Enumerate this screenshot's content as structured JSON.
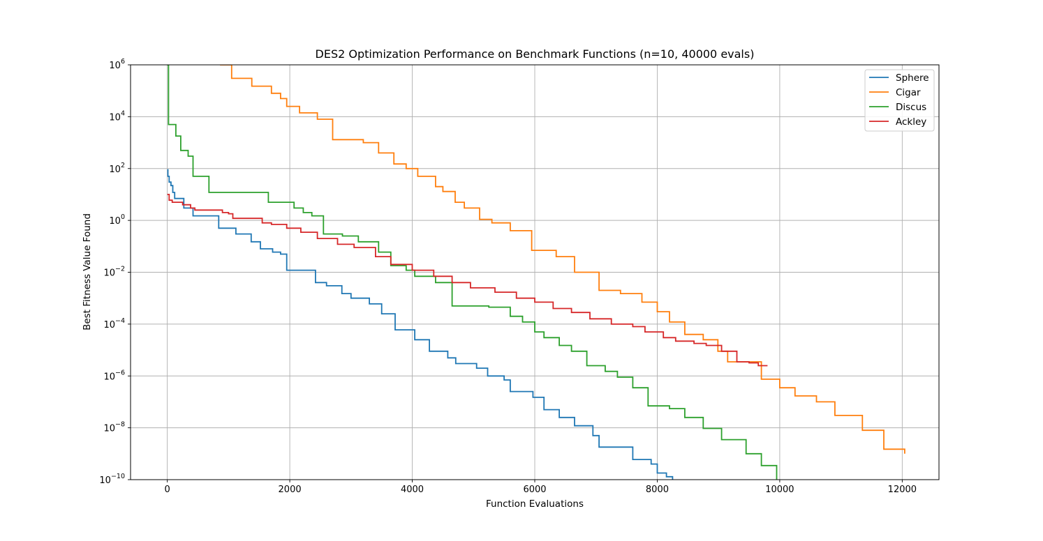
{
  "chart_data": {
    "type": "line",
    "title": "DES2 Optimization Performance on Benchmark Functions (n=10, 40000 evals)",
    "xlabel": "Function Evaluations",
    "ylabel": "Best Fitness Value Found",
    "xlim": [
      -600,
      12600
    ],
    "ylim": [
      1e-10,
      1000000.0
    ],
    "yscale": "log",
    "grid": true,
    "legend_position": "upper right",
    "x_ticks": [
      {
        "value": 0,
        "label": "0"
      },
      {
        "value": 2000,
        "label": "2000"
      },
      {
        "value": 4000,
        "label": "4000"
      },
      {
        "value": 6000,
        "label": "6000"
      },
      {
        "value": 8000,
        "label": "8000"
      },
      {
        "value": 10000,
        "label": "10000"
      },
      {
        "value": 12000,
        "label": "12000"
      }
    ],
    "y_ticks": [
      {
        "exp": -10,
        "base": "10",
        "sup": "−10"
      },
      {
        "exp": -8,
        "base": "10",
        "sup": "−8"
      },
      {
        "exp": -6,
        "base": "10",
        "sup": "−6"
      },
      {
        "exp": -4,
        "base": "10",
        "sup": "−4"
      },
      {
        "exp": -2,
        "base": "10",
        "sup": "−2"
      },
      {
        "exp": 0,
        "base": "10",
        "sup": "0"
      },
      {
        "exp": 2,
        "base": "10",
        "sup": "2"
      },
      {
        "exp": 4,
        "base": "10",
        "sup": "4"
      },
      {
        "exp": 6,
        "base": "10",
        "sup": "6"
      }
    ],
    "series": [
      {
        "name": "Sphere",
        "color": "#1f77b4",
        "points": [
          [
            0,
            90
          ],
          [
            10,
            50
          ],
          [
            30,
            30
          ],
          [
            60,
            22
          ],
          [
            90,
            12
          ],
          [
            120,
            7
          ],
          [
            270,
            3
          ],
          [
            420,
            1.5
          ],
          [
            840,
            0.5
          ],
          [
            1120,
            0.3
          ],
          [
            1370,
            0.15
          ],
          [
            1520,
            0.08
          ],
          [
            1720,
            0.06
          ],
          [
            1850,
            0.05
          ],
          [
            1950,
            0.012
          ],
          [
            2420,
            0.004
          ],
          [
            2600,
            0.003
          ],
          [
            2850,
            0.0015
          ],
          [
            3000,
            0.001
          ],
          [
            3300,
            0.0006
          ],
          [
            3500,
            0.00025
          ],
          [
            3720,
            6e-05
          ],
          [
            4040,
            2.5e-05
          ],
          [
            4280,
            9e-06
          ],
          [
            4580,
            5e-06
          ],
          [
            4710,
            3e-06
          ],
          [
            5050,
            2e-06
          ],
          [
            5230,
            1e-06
          ],
          [
            5500,
            7e-07
          ],
          [
            5600,
            2.5e-07
          ],
          [
            5970,
            1.5e-07
          ],
          [
            6150,
            5e-08
          ],
          [
            6400,
            2.5e-08
          ],
          [
            6650,
            1.2e-08
          ],
          [
            6950,
            5e-09
          ],
          [
            7050,
            1.8e-09
          ],
          [
            7600,
            6e-10
          ],
          [
            7900,
            4e-10
          ],
          [
            8000,
            1.8e-10
          ],
          [
            8150,
            1.3e-10
          ],
          [
            8250,
            1e-10
          ]
        ]
      },
      {
        "name": "Cigar",
        "color": "#ff7f0e",
        "points": [
          [
            860,
            1000000
          ],
          [
            1050,
            300000
          ],
          [
            1380,
            150000
          ],
          [
            1700,
            80000
          ],
          [
            1850,
            50000
          ],
          [
            1950,
            25000
          ],
          [
            2160,
            14000
          ],
          [
            2450,
            8000
          ],
          [
            2700,
            1300
          ],
          [
            3200,
            1000
          ],
          [
            3450,
            400
          ],
          [
            3700,
            150
          ],
          [
            3900,
            100
          ],
          [
            4090,
            50
          ],
          [
            4380,
            20
          ],
          [
            4500,
            13
          ],
          [
            4700,
            5
          ],
          [
            4850,
            3
          ],
          [
            5100,
            1.1
          ],
          [
            5300,
            0.8
          ],
          [
            5600,
            0.4
          ],
          [
            5950,
            0.07
          ],
          [
            6350,
            0.04
          ],
          [
            6650,
            0.01
          ],
          [
            7050,
            0.002
          ],
          [
            7400,
            0.0015
          ],
          [
            7750,
            0.0007
          ],
          [
            8000,
            0.0003
          ],
          [
            8200,
            0.00012
          ],
          [
            8450,
            4e-05
          ],
          [
            8750,
            2.5e-05
          ],
          [
            8990,
            9e-06
          ],
          [
            9150,
            3.5e-06
          ],
          [
            9700,
            7.5e-07
          ],
          [
            10000,
            3.5e-07
          ],
          [
            10250,
            1.7e-07
          ],
          [
            10600,
            1e-07
          ],
          [
            10900,
            3e-08
          ],
          [
            11350,
            8e-09
          ],
          [
            11700,
            1.5e-09
          ],
          [
            12040,
            1e-09
          ]
        ]
      },
      {
        "name": "Discus",
        "color": "#2ca02c",
        "points": [
          [
            0,
            1000000
          ],
          [
            20,
            5000
          ],
          [
            140,
            1800
          ],
          [
            220,
            500
          ],
          [
            340,
            300
          ],
          [
            420,
            50
          ],
          [
            680,
            12
          ],
          [
            1650,
            5
          ],
          [
            2070,
            3
          ],
          [
            2220,
            2
          ],
          [
            2360,
            1.5
          ],
          [
            2550,
            0.3
          ],
          [
            2860,
            0.25
          ],
          [
            3120,
            0.15
          ],
          [
            3450,
            0.06
          ],
          [
            3650,
            0.018
          ],
          [
            3900,
            0.012
          ],
          [
            4040,
            0.007
          ],
          [
            4380,
            0.004
          ],
          [
            4650,
            0.0005
          ],
          [
            5250,
            0.00045
          ],
          [
            5600,
            0.0002
          ],
          [
            5800,
            0.00012
          ],
          [
            6000,
            5e-05
          ],
          [
            6150,
            3e-05
          ],
          [
            6400,
            1.5e-05
          ],
          [
            6600,
            9e-06
          ],
          [
            6850,
            2.5e-06
          ],
          [
            7150,
            1.5e-06
          ],
          [
            7350,
            9e-07
          ],
          [
            7600,
            3.5e-07
          ],
          [
            7850,
            7e-08
          ],
          [
            8200,
            5.5e-08
          ],
          [
            8450,
            2.5e-08
          ],
          [
            8750,
            9.5e-09
          ],
          [
            9050,
            3.5e-09
          ],
          [
            9450,
            1e-09
          ],
          [
            9700,
            3.5e-10
          ],
          [
            9950,
            1e-10
          ]
        ]
      },
      {
        "name": "Ackley",
        "color": "#d62728",
        "points": [
          [
            0,
            10
          ],
          [
            30,
            6
          ],
          [
            80,
            5
          ],
          [
            250,
            4
          ],
          [
            380,
            3
          ],
          [
            450,
            2.5
          ],
          [
            900,
            2
          ],
          [
            1000,
            1.8
          ],
          [
            1070,
            1.2
          ],
          [
            1550,
            0.8
          ],
          [
            1700,
            0.7
          ],
          [
            1950,
            0.5
          ],
          [
            2180,
            0.35
          ],
          [
            2450,
            0.2
          ],
          [
            2780,
            0.12
          ],
          [
            3050,
            0.09
          ],
          [
            3400,
            0.04
          ],
          [
            3650,
            0.02
          ],
          [
            4000,
            0.012
          ],
          [
            4350,
            0.007
          ],
          [
            4650,
            0.004
          ],
          [
            4950,
            0.0025
          ],
          [
            5350,
            0.0017
          ],
          [
            5700,
            0.001
          ],
          [
            6000,
            0.0007
          ],
          [
            6300,
            0.0004
          ],
          [
            6600,
            0.00028
          ],
          [
            6900,
            0.00016
          ],
          [
            7250,
            0.0001
          ],
          [
            7600,
            8e-05
          ],
          [
            7800,
            5e-05
          ],
          [
            8100,
            3e-05
          ],
          [
            8300,
            2.2e-05
          ],
          [
            8600,
            1.8e-05
          ],
          [
            8800,
            1.5e-05
          ],
          [
            9050,
            9e-06
          ],
          [
            9300,
            3.5e-06
          ],
          [
            9500,
            3.2e-06
          ],
          [
            9650,
            2.5e-06
          ],
          [
            9800,
            2.5e-06
          ]
        ]
      }
    ]
  }
}
